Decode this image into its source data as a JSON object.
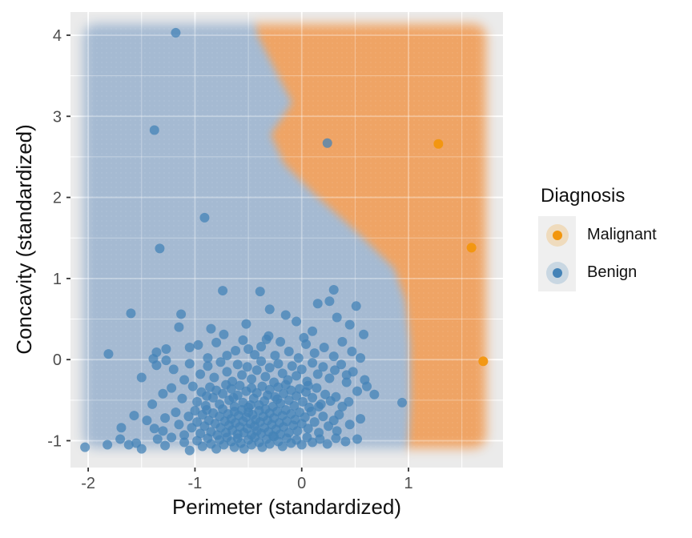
{
  "chart_data": {
    "type": "scatter",
    "title": "",
    "xlabel": "Perimeter (standardized)",
    "ylabel": "Concavity (standardized)",
    "xlim": [
      -2.166,
      1.885
    ],
    "ylim": [
      -1.331,
      4.286
    ],
    "x_ticks": [
      -2,
      -1,
      0,
      1
    ],
    "y_ticks": [
      -1,
      0,
      1,
      2,
      3,
      4
    ],
    "minor_grid_step": 0.5,
    "grid": true,
    "panel_bg": "#EBEBEB",
    "legend": {
      "title": "Diagnosis",
      "position": "right",
      "entries": [
        {
          "label": "Malignant",
          "color": "#F2960D"
        },
        {
          "label": "Benign",
          "color": "#4483B7"
        }
      ]
    },
    "decision_regions": {
      "benign_color": "#A5BAD2",
      "malignant_color": "#EFA465",
      "extent": {
        "x": [
          -2.045,
          1.728
        ],
        "y": [
          -1.093,
          4.138
        ]
      },
      "boundary": [
        [
          -0.448,
          4.286
        ],
        [
          -0.41,
          3.99
        ],
        [
          -0.2,
          3.447
        ],
        [
          -0.088,
          3.171
        ],
        [
          -0.29,
          2.776
        ],
        [
          -0.163,
          2.411
        ],
        [
          0.115,
          2.045
        ],
        [
          0.535,
          1.552
        ],
        [
          0.865,
          1.127
        ],
        [
          0.97,
          0.733
        ],
        [
          1.015,
          0.19
        ],
        [
          1.02,
          -0.5
        ],
        [
          1.0,
          -1.0
        ],
        [
          0.97,
          -1.331
        ]
      ]
    },
    "series": [
      {
        "name": "Malignant",
        "color": "#F2960D",
        "opacity": 0.95,
        "points": [
          [
            1.28,
            2.66
          ],
          [
            1.59,
            1.38
          ],
          [
            1.7,
            -0.02
          ]
        ]
      },
      {
        "name": "Benign",
        "color": "#4483B7",
        "opacity": 0.75,
        "points": [
          [
            -1.18,
            4.03
          ],
          [
            -1.38,
            2.83
          ],
          [
            0.24,
            2.67
          ],
          [
            -0.91,
            1.75
          ],
          [
            -1.33,
            1.37
          ],
          [
            -0.74,
            0.85
          ],
          [
            -0.39,
            0.84
          ],
          [
            0.3,
            0.86
          ],
          [
            0.26,
            0.72
          ],
          [
            0.15,
            0.69
          ],
          [
            0.51,
            0.66
          ],
          [
            -1.6,
            0.57
          ],
          [
            -1.13,
            0.56
          ],
          [
            -0.3,
            0.62
          ],
          [
            0.45,
            0.43
          ],
          [
            -1.15,
            0.4
          ],
          [
            -0.73,
            0.31
          ],
          [
            -0.31,
            0.29
          ],
          [
            -0.05,
            0.47
          ],
          [
            0.1,
            0.35
          ],
          [
            -0.52,
            0.44
          ],
          [
            0.33,
            0.52
          ],
          [
            -0.85,
            0.38
          ],
          [
            0.58,
            0.31
          ],
          [
            -0.15,
            0.55
          ],
          [
            -1.81,
            0.07
          ],
          [
            -1.36,
            0.09
          ],
          [
            -1.27,
            0.13
          ],
          [
            -1.39,
            0.01
          ],
          [
            -1.27,
            -0.01
          ],
          [
            -0.97,
            0.18
          ],
          [
            -0.8,
            0.21
          ],
          [
            -0.62,
            0.11
          ],
          [
            -0.55,
            0.24
          ],
          [
            -0.44,
            0.06
          ],
          [
            -0.38,
            0.16
          ],
          [
            -0.25,
            0.05
          ],
          [
            -0.2,
            0.22
          ],
          [
            -0.12,
            0.1
          ],
          [
            -0.03,
            0.02
          ],
          [
            0.04,
            0.19
          ],
          [
            0.12,
            0.08
          ],
          [
            0.21,
            0.15
          ],
          [
            0.3,
            0.04
          ],
          [
            0.38,
            0.22
          ],
          [
            0.47,
            0.1
          ],
          [
            0.55,
            0.02
          ],
          [
            -0.7,
            0.05
          ],
          [
            -0.88,
            0.02
          ],
          [
            -1.05,
            0.15
          ],
          [
            -0.5,
            0.13
          ],
          [
            -0.33,
            0.25
          ],
          [
            0.02,
            0.27
          ],
          [
            -1.36,
            -0.07
          ],
          [
            -1.5,
            -0.22
          ],
          [
            -1.2,
            -0.12
          ],
          [
            -1.1,
            -0.25
          ],
          [
            -1.05,
            -0.05
          ],
          [
            -0.95,
            -0.18
          ],
          [
            -0.88,
            -0.08
          ],
          [
            -0.82,
            -0.22
          ],
          [
            -0.76,
            -0.03
          ],
          [
            -0.7,
            -0.15
          ],
          [
            -0.65,
            -0.27
          ],
          [
            -0.6,
            -0.06
          ],
          [
            -0.56,
            -0.19
          ],
          [
            -0.51,
            -0.09
          ],
          [
            -0.47,
            -0.24
          ],
          [
            -0.42,
            -0.13
          ],
          [
            -0.38,
            -0.02
          ],
          [
            -0.34,
            -0.21
          ],
          [
            -0.3,
            -0.1
          ],
          [
            -0.26,
            -0.28
          ],
          [
            -0.22,
            -0.05
          ],
          [
            -0.18,
            -0.17
          ],
          [
            -0.13,
            -0.25
          ],
          [
            -0.09,
            -0.08
          ],
          [
            -0.05,
            -0.2
          ],
          [
            0.0,
            -0.12
          ],
          [
            0.05,
            -0.27
          ],
          [
            0.1,
            -0.04
          ],
          [
            0.15,
            -0.18
          ],
          [
            0.2,
            -0.09
          ],
          [
            0.26,
            -0.23
          ],
          [
            0.31,
            -0.13
          ],
          [
            0.37,
            -0.06
          ],
          [
            0.42,
            -0.19
          ],
          [
            0.48,
            -0.15
          ],
          [
            0.59,
            -0.25
          ],
          [
            0.61,
            -0.33
          ],
          [
            0.52,
            -0.39
          ],
          [
            0.68,
            -0.43
          ],
          [
            0.94,
            -0.53
          ],
          [
            0.42,
            -0.28
          ],
          [
            -1.22,
            -0.35
          ],
          [
            -1.12,
            -0.48
          ],
          [
            -1.02,
            -0.33
          ],
          [
            -0.98,
            -0.52
          ],
          [
            -0.94,
            -0.4
          ],
          [
            -0.9,
            -0.57
          ],
          [
            -0.86,
            -0.34
          ],
          [
            -0.83,
            -0.47
          ],
          [
            -0.8,
            -0.38
          ],
          [
            -0.77,
            -0.55
          ],
          [
            -0.74,
            -0.42
          ],
          [
            -0.71,
            -0.31
          ],
          [
            -0.68,
            -0.5
          ],
          [
            -0.66,
            -0.36
          ],
          [
            -0.63,
            -0.58
          ],
          [
            -0.6,
            -0.44
          ],
          [
            -0.58,
            -0.32
          ],
          [
            -0.55,
            -0.53
          ],
          [
            -0.52,
            -0.39
          ],
          [
            -0.5,
            -0.59
          ],
          [
            -0.47,
            -0.35
          ],
          [
            -0.45,
            -0.48
          ],
          [
            -0.42,
            -0.41
          ],
          [
            -0.4,
            -0.56
          ],
          [
            -0.37,
            -0.33
          ],
          [
            -0.35,
            -0.51
          ],
          [
            -0.32,
            -0.44
          ],
          [
            -0.3,
            -0.37
          ],
          [
            -0.27,
            -0.58
          ],
          [
            -0.25,
            -0.46
          ],
          [
            -0.22,
            -0.34
          ],
          [
            -0.2,
            -0.54
          ],
          [
            -0.17,
            -0.42
          ],
          [
            -0.15,
            -0.31
          ],
          [
            -0.12,
            -0.5
          ],
          [
            -0.1,
            -0.38
          ],
          [
            -0.07,
            -0.57
          ],
          [
            -0.05,
            -0.45
          ],
          [
            -0.02,
            -0.36
          ],
          [
            0.01,
            -0.52
          ],
          [
            0.04,
            -0.4
          ],
          [
            0.07,
            -0.59
          ],
          [
            0.1,
            -0.47
          ],
          [
            0.14,
            -0.35
          ],
          [
            0.18,
            -0.55
          ],
          [
            0.22,
            -0.43
          ],
          [
            0.27,
            -0.51
          ],
          [
            0.32,
            -0.46
          ],
          [
            0.38,
            -0.58
          ],
          [
            0.44,
            -0.52
          ],
          [
            -1.3,
            -0.42
          ],
          [
            -1.4,
            -0.55
          ],
          [
            -0.89,
            -0.45
          ],
          [
            -0.64,
            -0.47
          ],
          [
            -0.48,
            -0.56
          ],
          [
            -0.23,
            -0.49
          ],
          [
            0.06,
            -0.32
          ],
          [
            0.16,
            -0.58
          ],
          [
            -1.28,
            -0.72
          ],
          [
            -1.3,
            -0.88
          ],
          [
            -1.18,
            -0.65
          ],
          [
            -1.15,
            -0.8
          ],
          [
            -1.1,
            -0.93
          ],
          [
            -1.06,
            -0.7
          ],
          [
            -1.03,
            -0.84
          ],
          [
            -1.0,
            -0.63
          ],
          [
            -0.98,
            -0.77
          ],
          [
            -0.95,
            -0.91
          ],
          [
            -0.93,
            -0.68
          ],
          [
            -0.91,
            -0.82
          ],
          [
            -0.89,
            -0.62
          ],
          [
            -0.87,
            -0.75
          ],
          [
            -0.85,
            -0.89
          ],
          [
            -0.83,
            -0.66
          ],
          [
            -0.81,
            -0.79
          ],
          [
            -0.79,
            -0.93
          ],
          [
            -0.77,
            -0.7
          ],
          [
            -0.76,
            -0.84
          ],
          [
            -0.74,
            -0.61
          ],
          [
            -0.72,
            -0.76
          ],
          [
            -0.71,
            -0.9
          ],
          [
            -0.69,
            -0.67
          ],
          [
            -0.68,
            -0.81
          ],
          [
            -0.66,
            -0.73
          ],
          [
            -0.65,
            -0.87
          ],
          [
            -0.63,
            -0.64
          ],
          [
            -0.62,
            -0.78
          ],
          [
            -0.6,
            -0.92
          ],
          [
            -0.59,
            -0.69
          ],
          [
            -0.58,
            -0.83
          ],
          [
            -0.56,
            -0.62
          ],
          [
            -0.55,
            -0.76
          ],
          [
            -0.54,
            -0.9
          ],
          [
            -0.52,
            -0.71
          ],
          [
            -0.51,
            -0.85
          ],
          [
            -0.5,
            -0.65
          ],
          [
            -0.48,
            -0.79
          ],
          [
            -0.47,
            -0.93
          ],
          [
            -0.46,
            -0.68
          ],
          [
            -0.44,
            -0.82
          ],
          [
            -0.43,
            -0.74
          ],
          [
            -0.42,
            -0.88
          ],
          [
            -0.4,
            -0.63
          ],
          [
            -0.39,
            -0.77
          ],
          [
            -0.38,
            -0.91
          ],
          [
            -0.36,
            -0.7
          ],
          [
            -0.35,
            -0.84
          ],
          [
            -0.34,
            -0.61
          ],
          [
            -0.32,
            -0.75
          ],
          [
            -0.31,
            -0.89
          ],
          [
            -0.3,
            -0.66
          ],
          [
            -0.28,
            -0.8
          ],
          [
            -0.27,
            -0.94
          ],
          [
            -0.26,
            -0.72
          ],
          [
            -0.24,
            -0.86
          ],
          [
            -0.23,
            -0.64
          ],
          [
            -0.21,
            -0.78
          ],
          [
            -0.2,
            -0.92
          ],
          [
            -0.18,
            -0.69
          ],
          [
            -0.17,
            -0.83
          ],
          [
            -0.15,
            -0.62
          ],
          [
            -0.14,
            -0.76
          ],
          [
            -0.12,
            -0.9
          ],
          [
            -0.1,
            -0.67
          ],
          [
            -0.08,
            -0.81
          ],
          [
            -0.06,
            -0.74
          ],
          [
            -0.04,
            -0.88
          ],
          [
            -0.02,
            -0.65
          ],
          [
            0.0,
            -0.79
          ],
          [
            0.03,
            -0.71
          ],
          [
            0.06,
            -0.85
          ],
          [
            0.09,
            -0.64
          ],
          [
            0.12,
            -0.77
          ],
          [
            0.16,
            -0.9
          ],
          [
            0.2,
            -0.7
          ],
          [
            0.25,
            -0.82
          ],
          [
            -1.45,
            -0.75
          ],
          [
            -1.38,
            -0.85
          ],
          [
            -1.69,
            -0.84
          ],
          [
            -1.57,
            -0.69
          ],
          [
            0.3,
            -0.75
          ],
          [
            0.35,
            -0.68
          ],
          [
            0.45,
            -0.8
          ],
          [
            0.55,
            -0.73
          ],
          [
            0.33,
            -0.88
          ],
          [
            -2.03,
            -1.08
          ],
          [
            -1.82,
            -1.05
          ],
          [
            -1.62,
            -1.05
          ],
          [
            -1.7,
            -0.98
          ],
          [
            -1.55,
            -1.03
          ],
          [
            -1.5,
            -1.1
          ],
          [
            -1.35,
            -0.98
          ],
          [
            -1.28,
            -1.06
          ],
          [
            -1.22,
            -0.96
          ],
          [
            -1.1,
            -1.02
          ],
          [
            -1.05,
            -1.12
          ],
          [
            -0.98,
            -1.0
          ],
          [
            -0.93,
            -1.07
          ],
          [
            -0.88,
            -0.97
          ],
          [
            -0.85,
            -1.04
          ],
          [
            -0.8,
            -1.1
          ],
          [
            -0.77,
            -0.99
          ],
          [
            -0.73,
            -1.05
          ],
          [
            -0.7,
            -0.96
          ],
          [
            -0.66,
            -1.01
          ],
          [
            -0.63,
            -1.08
          ],
          [
            -0.6,
            -0.97
          ],
          [
            -0.57,
            -1.03
          ],
          [
            -0.54,
            -1.1
          ],
          [
            -0.5,
            -0.99
          ],
          [
            -0.47,
            -1.05
          ],
          [
            -0.44,
            -0.96
          ],
          [
            -0.4,
            -1.02
          ],
          [
            -0.37,
            -1.08
          ],
          [
            -0.33,
            -0.98
          ],
          [
            -0.3,
            -1.04
          ],
          [
            -0.26,
            -0.95
          ],
          [
            -0.22,
            -1.01
          ],
          [
            -0.18,
            -1.07
          ],
          [
            -0.14,
            -0.97
          ],
          [
            -0.1,
            -1.03
          ],
          [
            -0.05,
            -0.99
          ],
          [
            0.0,
            -1.05
          ],
          [
            0.05,
            -0.96
          ],
          [
            0.1,
            -1.02
          ],
          [
            0.17,
            -0.98
          ],
          [
            0.24,
            -1.04
          ],
          [
            0.32,
            -0.97
          ],
          [
            0.41,
            -1.01
          ],
          [
            0.52,
            -0.98
          ]
        ]
      }
    ],
    "style": {
      "grid_major_color": "#FFFFFF",
      "tick_label_color": "#4D4D4D",
      "tick_mark_color": "#333333",
      "point_radius": 6
    }
  }
}
